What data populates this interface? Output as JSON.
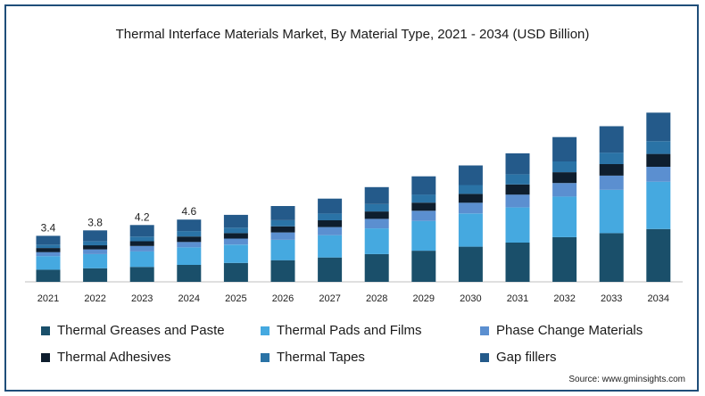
{
  "chart_data": {
    "type": "bar",
    "stacked": true,
    "title": "Thermal Interface Materials Market, By Material Type, 2021 - 2034 (USD Billion)",
    "categories": [
      "2021",
      "2022",
      "2023",
      "2024",
      "2025",
      "2026",
      "2027",
      "2028",
      "2029",
      "2030",
      "2031",
      "2032",
      "2033",
      "2034"
    ],
    "series": [
      {
        "name": "Thermal Greases and Paste",
        "color": "#1a4f6a",
        "values": [
          0.9,
          1.0,
          1.1,
          1.25,
          1.4,
          1.6,
          1.8,
          2.05,
          2.3,
          2.6,
          2.9,
          3.3,
          3.6,
          3.9
        ]
      },
      {
        "name": "Thermal Pads and Films",
        "color": "#45a9e0",
        "values": [
          1.0,
          1.05,
          1.15,
          1.3,
          1.35,
          1.5,
          1.65,
          1.9,
          2.2,
          2.45,
          2.6,
          3.0,
          3.2,
          3.5
        ]
      },
      {
        "name": "Phase Change Materials",
        "color": "#5b8fd0",
        "values": [
          0.3,
          0.35,
          0.4,
          0.4,
          0.45,
          0.55,
          0.6,
          0.7,
          0.75,
          0.8,
          0.95,
          1.0,
          1.05,
          1.1
        ]
      },
      {
        "name": "Thermal Adhesives",
        "color": "#0e1e2e",
        "values": [
          0.3,
          0.3,
          0.35,
          0.4,
          0.4,
          0.45,
          0.5,
          0.55,
          0.6,
          0.65,
          0.75,
          0.8,
          0.85,
          0.95
        ]
      },
      {
        "name": "Thermal Tapes",
        "color": "#2a73a6",
        "values": [
          0.25,
          0.3,
          0.35,
          0.4,
          0.4,
          0.45,
          0.5,
          0.55,
          0.6,
          0.65,
          0.75,
          0.8,
          0.85,
          0.95
        ]
      },
      {
        "name": "Gap fillers",
        "color": "#245a8a",
        "values": [
          0.65,
          0.8,
          0.85,
          0.85,
          0.95,
          1.05,
          1.1,
          1.25,
          1.35,
          1.45,
          1.55,
          1.8,
          1.95,
          2.1
        ]
      }
    ],
    "data_labels": [
      {
        "category": "2021",
        "text": "3.4"
      },
      {
        "category": "2022",
        "text": "3.8"
      },
      {
        "category": "2023",
        "text": "4.2"
      },
      {
        "category": "2024",
        "text": "4.6"
      }
    ],
    "ylim": [
      0,
      14.5
    ],
    "grid": false,
    "legend_position": "bottom"
  },
  "source": "Source: www.gminsights.com"
}
